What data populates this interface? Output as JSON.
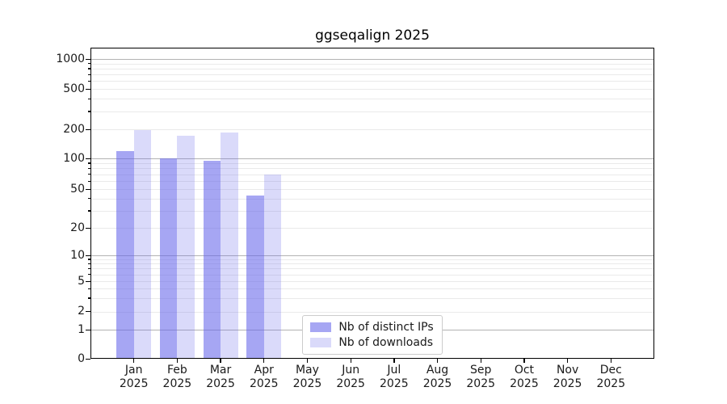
{
  "chart_data": {
    "type": "bar",
    "title": "ggseqalign 2025",
    "categories": [
      "Jan 2025",
      "Feb 2025",
      "Mar 2025",
      "Apr 2025",
      "May 2025",
      "Jun 2025",
      "Jul 2025",
      "Aug 2025",
      "Sep 2025",
      "Oct 2025",
      "Nov 2025",
      "Dec 2025"
    ],
    "series": [
      {
        "name": "Nb of distinct IPs",
        "color": "rgba(102,102,235,0.58)",
        "values": [
          120,
          100,
          94,
          43,
          0,
          0,
          0,
          0,
          0,
          0,
          0,
          0
        ]
      },
      {
        "name": "Nb of downloads",
        "color": "rgba(102,102,235,0.24)",
        "values": [
          196,
          170,
          184,
          70,
          0,
          0,
          0,
          0,
          0,
          0,
          0,
          0
        ]
      }
    ],
    "xlabel": "",
    "ylabel": "",
    "yscale": "symlog",
    "y_ticks": [
      0,
      1,
      2,
      5,
      10,
      20,
      50,
      100,
      200,
      500,
      1000
    ],
    "ylim": [
      0,
      1000
    ],
    "grid": true,
    "legend_position": "lower center",
    "colors": {
      "bar_base": "#6666eb",
      "major_grid": "#b3b3b3",
      "minor_grid": "#eaeaea",
      "axis": "#000000",
      "legend_border": "#cccccc",
      "background": "#ffffff"
    }
  }
}
